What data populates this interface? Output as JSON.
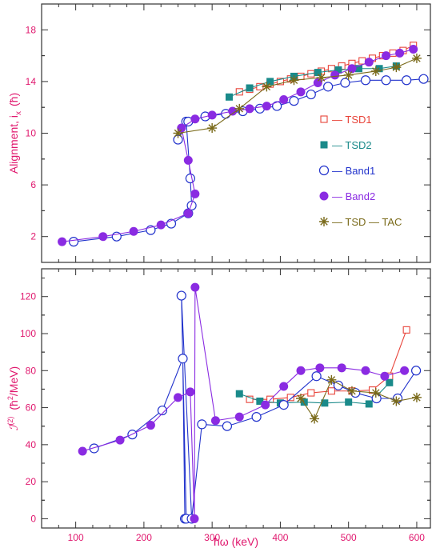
{
  "chart_data": [
    {
      "type": "line",
      "ylabel": "Alignment, i",
      "ylabel_sub": "x",
      "ylabel_unit": "(ħ)",
      "xlim": [
        50,
        620
      ],
      "ylim": [
        0,
        20
      ],
      "xticks": [
        100,
        200,
        300,
        400,
        500,
        600
      ],
      "yticks": [
        2,
        6,
        10,
        14,
        18
      ],
      "legend_position": "right",
      "series": [
        {
          "name": "TSD1",
          "legend": "— TSD1",
          "color": "#e8443a",
          "marker": "open-square",
          "x": [
            340,
            355,
            370,
            385,
            400,
            415,
            430,
            445,
            460,
            475,
            490,
            505,
            520,
            535,
            550,
            565,
            580,
            595
          ],
          "y": [
            13.2,
            13.4,
            13.6,
            13.8,
            14.0,
            14.2,
            14.4,
            14.6,
            14.8,
            15.0,
            15.2,
            15.4,
            15.6,
            15.8,
            16.0,
            16.2,
            16.4,
            16.8
          ]
        },
        {
          "name": "TSD2",
          "legend": "— TSD2",
          "color": "#1a8a8a",
          "marker": "filled-square",
          "x": [
            325,
            355,
            385,
            420,
            455,
            485,
            515,
            545,
            570
          ],
          "y": [
            12.8,
            13.5,
            14.0,
            14.4,
            14.7,
            14.9,
            15.0,
            15.0,
            15.2
          ]
        },
        {
          "name": "Band1",
          "legend": "— Band1",
          "color": "#2233cc",
          "marker": "open-circle",
          "x": [
            97,
            160,
            210,
            240,
            265,
            270,
            268,
            262,
            250,
            265,
            290,
            320,
            345,
            370,
            395,
            420,
            445,
            470,
            495,
            525,
            555,
            585,
            610
          ],
          "y": [
            1.6,
            2.0,
            2.5,
            3.0,
            3.8,
            4.4,
            6.5,
            10.9,
            9.5,
            10.9,
            11.3,
            11.5,
            11.7,
            11.9,
            12.1,
            12.5,
            13.0,
            13.6,
            13.9,
            14.1,
            14.1,
            14.1,
            14.2
          ]
        },
        {
          "name": "Band2",
          "legend": "— Band2",
          "color": "#8a2be2",
          "marker": "filled-circle",
          "x": [
            80,
            140,
            185,
            225,
            265,
            275,
            265,
            255,
            275,
            300,
            330,
            355,
            380,
            405,
            430,
            455,
            480,
            505,
            530,
            555,
            575,
            595
          ],
          "y": [
            1.6,
            2.0,
            2.4,
            2.9,
            3.8,
            5.3,
            7.9,
            10.4,
            11.1,
            11.4,
            11.7,
            11.9,
            12.1,
            12.6,
            13.2,
            13.9,
            14.5,
            15.0,
            15.5,
            16.0,
            16.2,
            16.5
          ]
        },
        {
          "name": "TSD - TAC",
          "legend": "— TSD — TAC",
          "color": "#7a6a1a",
          "marker": "star",
          "x": [
            250,
            300,
            340,
            380,
            420,
            460,
            500,
            540,
            570,
            600
          ],
          "y": [
            10.0,
            10.4,
            11.9,
            13.6,
            14.1,
            14.3,
            14.5,
            14.8,
            15.1,
            15.8
          ]
        }
      ]
    },
    {
      "type": "line",
      "xlabel": "ħω  (keV)",
      "ylabel": "ℐ",
      "ylabel_sup": "(2)",
      "ylabel_unit": "(ħ",
      "ylabel_unit_sup": "2",
      "ylabel_unit_tail": "/MeV)",
      "xlim": [
        50,
        620
      ],
      "ylim": [
        -5,
        135
      ],
      "xticks": [
        100,
        200,
        300,
        400,
        500,
        600
      ],
      "yticks": [
        0,
        20,
        40,
        60,
        80,
        100,
        120
      ],
      "series": [
        {
          "name": "TSD1",
          "color": "#e8443a",
          "marker": "open-square",
          "x": [
            355,
            385,
            415,
            445,
            475,
            505,
            535,
            560,
            585
          ],
          "y": [
            64.5,
            64.5,
            65.5,
            68,
            69,
            69,
            69.5,
            77,
            102
          ]
        },
        {
          "name": "TSD2",
          "color": "#1a8a8a",
          "marker": "filled-square",
          "x": [
            340,
            370,
            400,
            435,
            465,
            500,
            530,
            560
          ],
          "y": [
            67.5,
            63.5,
            62.5,
            63,
            62.5,
            63,
            62,
            73.5
          ]
        },
        {
          "name": "Band1",
          "color": "#2233cc",
          "marker": "open-circle",
          "x": [
            127,
            183,
            227,
            257,
            260,
            262,
            255,
            270,
            285,
            322,
            365,
            405,
            453,
            485,
            510,
            541,
            572,
            599
          ],
          "y": [
            38,
            45.5,
            58.5,
            86.5,
            0,
            0,
            120.5,
            0,
            51,
            50,
            55,
            61.5,
            77,
            72,
            68,
            65,
            65,
            80
          ]
        },
        {
          "name": "Band2",
          "color": "#8a2be2",
          "marker": "filled-circle",
          "x": [
            110,
            165,
            210,
            250,
            268,
            274,
            275,
            305,
            340,
            378,
            405,
            430,
            458,
            490,
            525,
            553,
            582
          ],
          "y": [
            36.5,
            42.5,
            50.5,
            65.5,
            68.5,
            0,
            125,
            53,
            55,
            61.5,
            71.5,
            80,
            81.5,
            81.5,
            80,
            77,
            80
          ]
        },
        {
          "name": "TSD - TAC",
          "color": "#7a6a1a",
          "marker": "star",
          "x": [
            430,
            450,
            475,
            505,
            540,
            570,
            600
          ],
          "y": [
            65,
            54,
            75,
            69,
            68,
            63.5,
            65.5
          ]
        }
      ]
    }
  ]
}
